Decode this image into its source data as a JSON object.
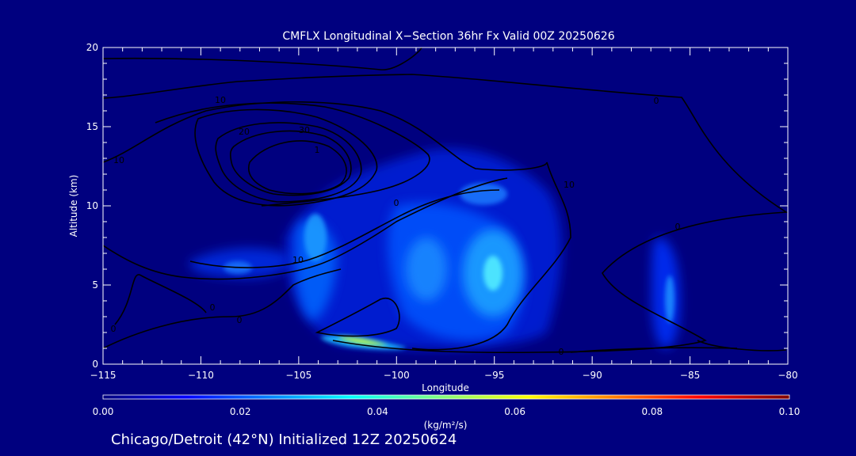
{
  "chart_data": {
    "type": "heatmap",
    "title": "CMFLX Longitudinal X−Section 36hr  Fx Valid 00Z 20250626",
    "xlabel": "Longitude",
    "ylabel": "Altitude (km)",
    "xlim": [
      -115,
      -80
    ],
    "ylim": [
      0,
      20
    ],
    "x_ticks": [
      -115,
      -110,
      -105,
      -100,
      -95,
      -90,
      -85,
      -80
    ],
    "x_tick_labels": [
      "−115",
      "−110",
      "−105",
      "−100",
      "−95",
      "−90",
      "−85",
      "−80"
    ],
    "y_ticks": [
      0,
      5,
      10,
      15,
      20
    ],
    "y_tick_labels": [
      "0",
      "5",
      "10",
      "15",
      "20"
    ],
    "colorbar": {
      "label": "(kg/m²/s)",
      "range": [
        0.0,
        0.1
      ],
      "ticks": [
        0.0,
        0.02,
        0.04,
        0.06,
        0.08,
        0.1
      ],
      "tick_labels": [
        "0.00",
        "0.02",
        "0.04",
        "0.06",
        "0.08",
        "0.10"
      ]
    },
    "shaded_maxima": [
      {
        "lon": -102,
        "alt": 1.5,
        "value": 0.055
      },
      {
        "lon": -95,
        "alt": 5.5,
        "value": 0.038
      },
      {
        "lon": -98,
        "alt": 6.0,
        "value": 0.028
      },
      {
        "lon": -104,
        "alt": 8.0,
        "value": 0.032
      },
      {
        "lon": -95,
        "alt": 10.7,
        "value": 0.024
      },
      {
        "lon": -84.5,
        "alt": 4.5,
        "value": 0.022
      },
      {
        "lon": -109,
        "alt": 6.2,
        "value": 0.015
      }
    ],
    "contour_labels": [
      "10",
      "10",
      "20",
      "30",
      "1",
      "0",
      "10",
      "10",
      "0",
      "0",
      "0",
      "0",
      "0",
      "0"
    ],
    "grid": false
  },
  "footer": {
    "caption": "Chicago/Detroit (42°N) Initialized 12Z 20250624"
  },
  "colors": {
    "background": "#00007f",
    "axes": "#ffffff",
    "contour": "#000000"
  }
}
